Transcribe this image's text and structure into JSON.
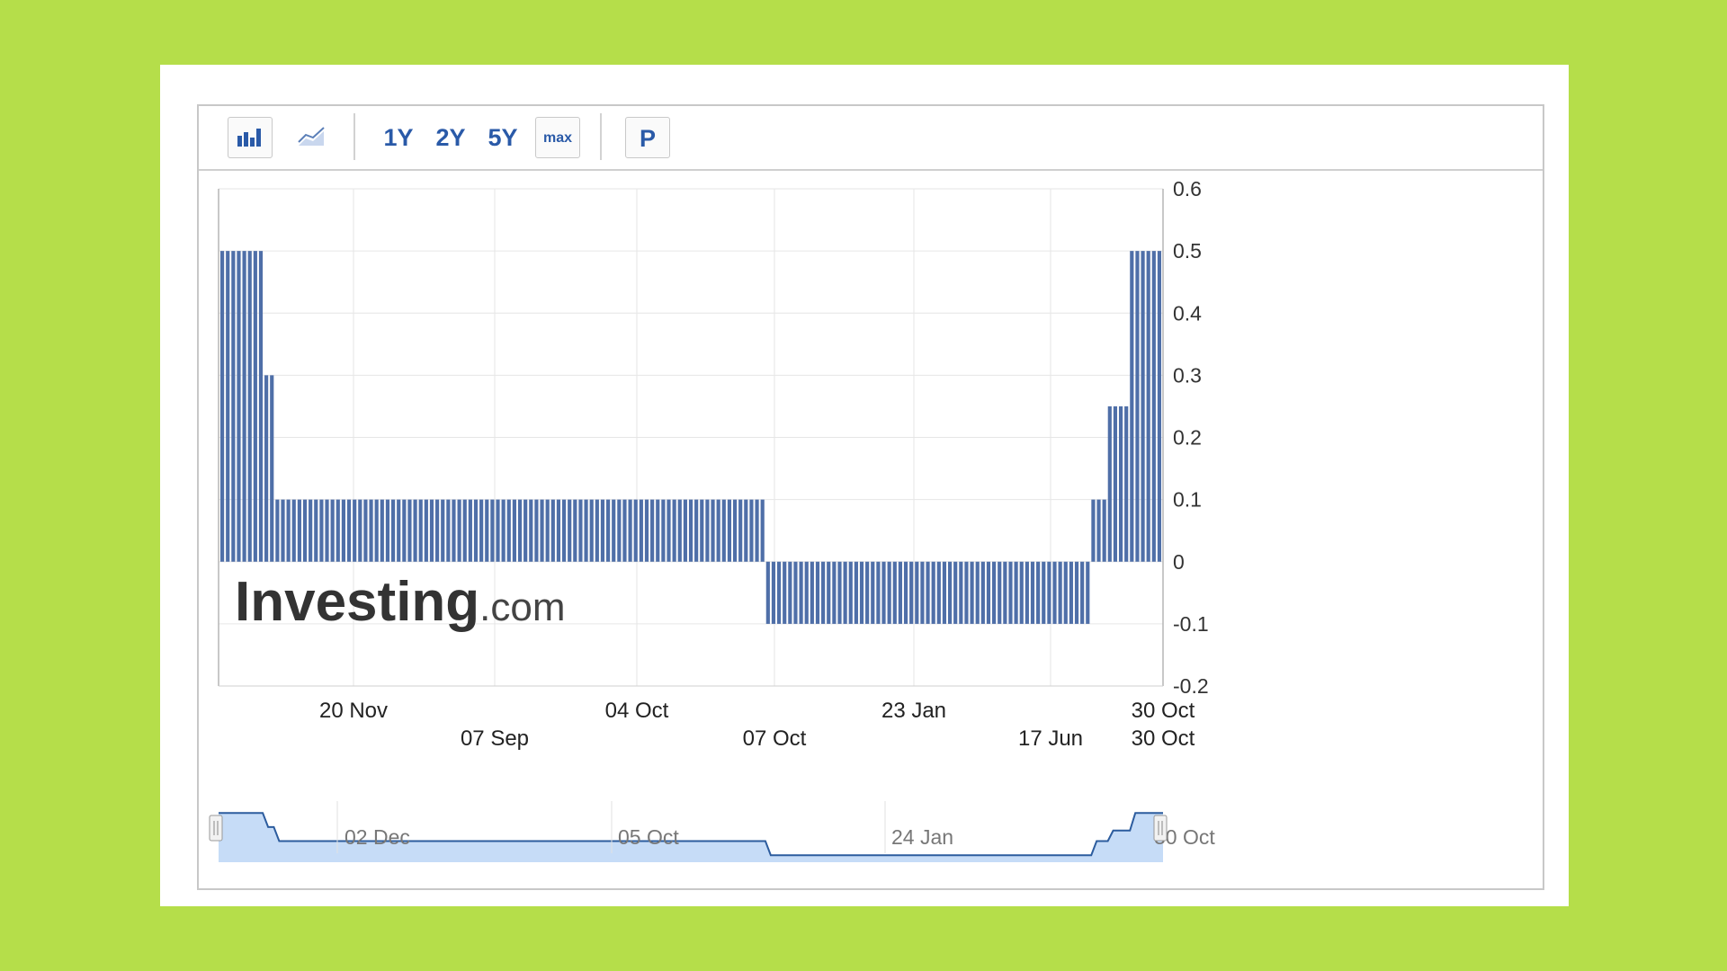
{
  "toolbar": {
    "bar_icon": "bar-chart-icon",
    "line_icon": "area-chart-icon",
    "range_1y": "1Y",
    "range_2y": "2Y",
    "range_5y": "5Y",
    "range_max": "max",
    "pin_label": "P"
  },
  "watermark": {
    "brand": "Investing",
    "suffix": ".com"
  },
  "colors": {
    "bar": "#4f6fa8",
    "background": "#b5de4a",
    "navigator_fill": "#c6dcf7",
    "navigator_line": "#2c5c9e"
  },
  "navigator": {
    "labels": [
      "02 Dec",
      "05 Oct",
      "24 Jan",
      "30 Oct"
    ]
  },
  "chart_data": {
    "type": "bar",
    "yticks": [
      "0.6",
      "0.5",
      "0.4",
      "0.3",
      "0.2",
      "0.1",
      "0",
      "-0.1",
      "-0.2"
    ],
    "ylim": [
      -0.2,
      0.6
    ],
    "xticks_row1": [
      "20 Nov",
      "04 Oct",
      "23 Jan",
      "30 Oct"
    ],
    "xticks_row2": [
      "07 Sep",
      "07 Oct",
      "17 Jun",
      "30 Oct"
    ],
    "grid": true,
    "segments": [
      {
        "value": 0.5,
        "bars": 8
      },
      {
        "value": 0.3,
        "bars": 2
      },
      {
        "value": 0.1,
        "bars": 89
      },
      {
        "value": -0.1,
        "bars": 59
      },
      {
        "value": 0.1,
        "bars": 3
      },
      {
        "value": 0.25,
        "bars": 4
      },
      {
        "value": 0.5,
        "bars": 6
      }
    ]
  }
}
